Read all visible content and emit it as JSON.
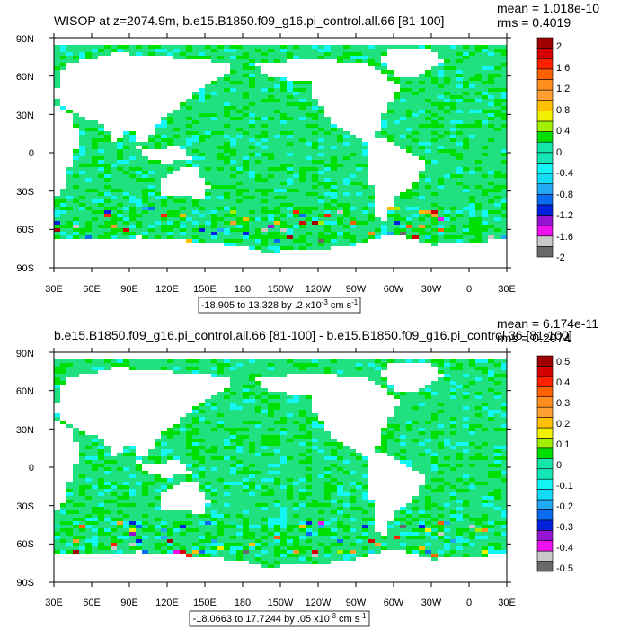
{
  "panels": [
    {
      "title": "WISOP at z=2074.9m, b.e15.B1850.f09_g16.pi_control.all.66 [81-100]",
      "mean": "mean = 1.018e-10",
      "rms": "rms = 0.4019",
      "range_label": "-18.905 to 13.328 by .2 x10-3 cm s-1",
      "colorbar_labels": [
        "2",
        "1.6",
        "1.2",
        "0.8",
        "0.4",
        "0",
        "-0.4",
        "-0.8",
        "-1.2",
        "-1.6",
        "-2"
      ],
      "noise": 0.35
    },
    {
      "title": "b.e15.B1850.f09_g16.pi_control.all.66 [81-100] - b.e15.B1850.f09_g16.pi_control.36 [81-100]",
      "mean": "mean = 6.174e-11",
      "rms": "rms = 0.2074",
      "range_label": "-18.0663 to 17.7244 by .05 x10-3 cm s-1",
      "colorbar_labels": [
        "0.5",
        "0.4",
        "0.3",
        "0.2",
        "0.1",
        "0",
        "-0.1",
        "-0.2",
        "-0.3",
        "-0.4",
        "-0.5"
      ],
      "noise": 0.45
    }
  ],
  "lat_ticks": [
    "90N",
    "60N",
    "30N",
    "0",
    "30S",
    "60S",
    "90S"
  ],
  "lon_ticks": [
    "30E",
    "60E",
    "90E",
    "120E",
    "150E",
    "180",
    "150W",
    "120W",
    "90W",
    "60W",
    "30W",
    "0",
    "30E"
  ],
  "colorbar_colors": [
    "#696969",
    "#c8c8c8",
    "#ee11ee",
    "#9414d2",
    "#0022dd",
    "#0a6cf3",
    "#22a9f5",
    "#14dcf5",
    "#14f5f5",
    "#14e6b5",
    "#14e6aa",
    "#00e000",
    "#a0f000",
    "#f0f000",
    "#ffc000",
    "#ffa030",
    "#ff9020",
    "#ff6000",
    "#ff2000",
    "#d40000",
    "#a00000"
  ],
  "ocean_color": "#20e080",
  "land_color": "#ffffff"
}
